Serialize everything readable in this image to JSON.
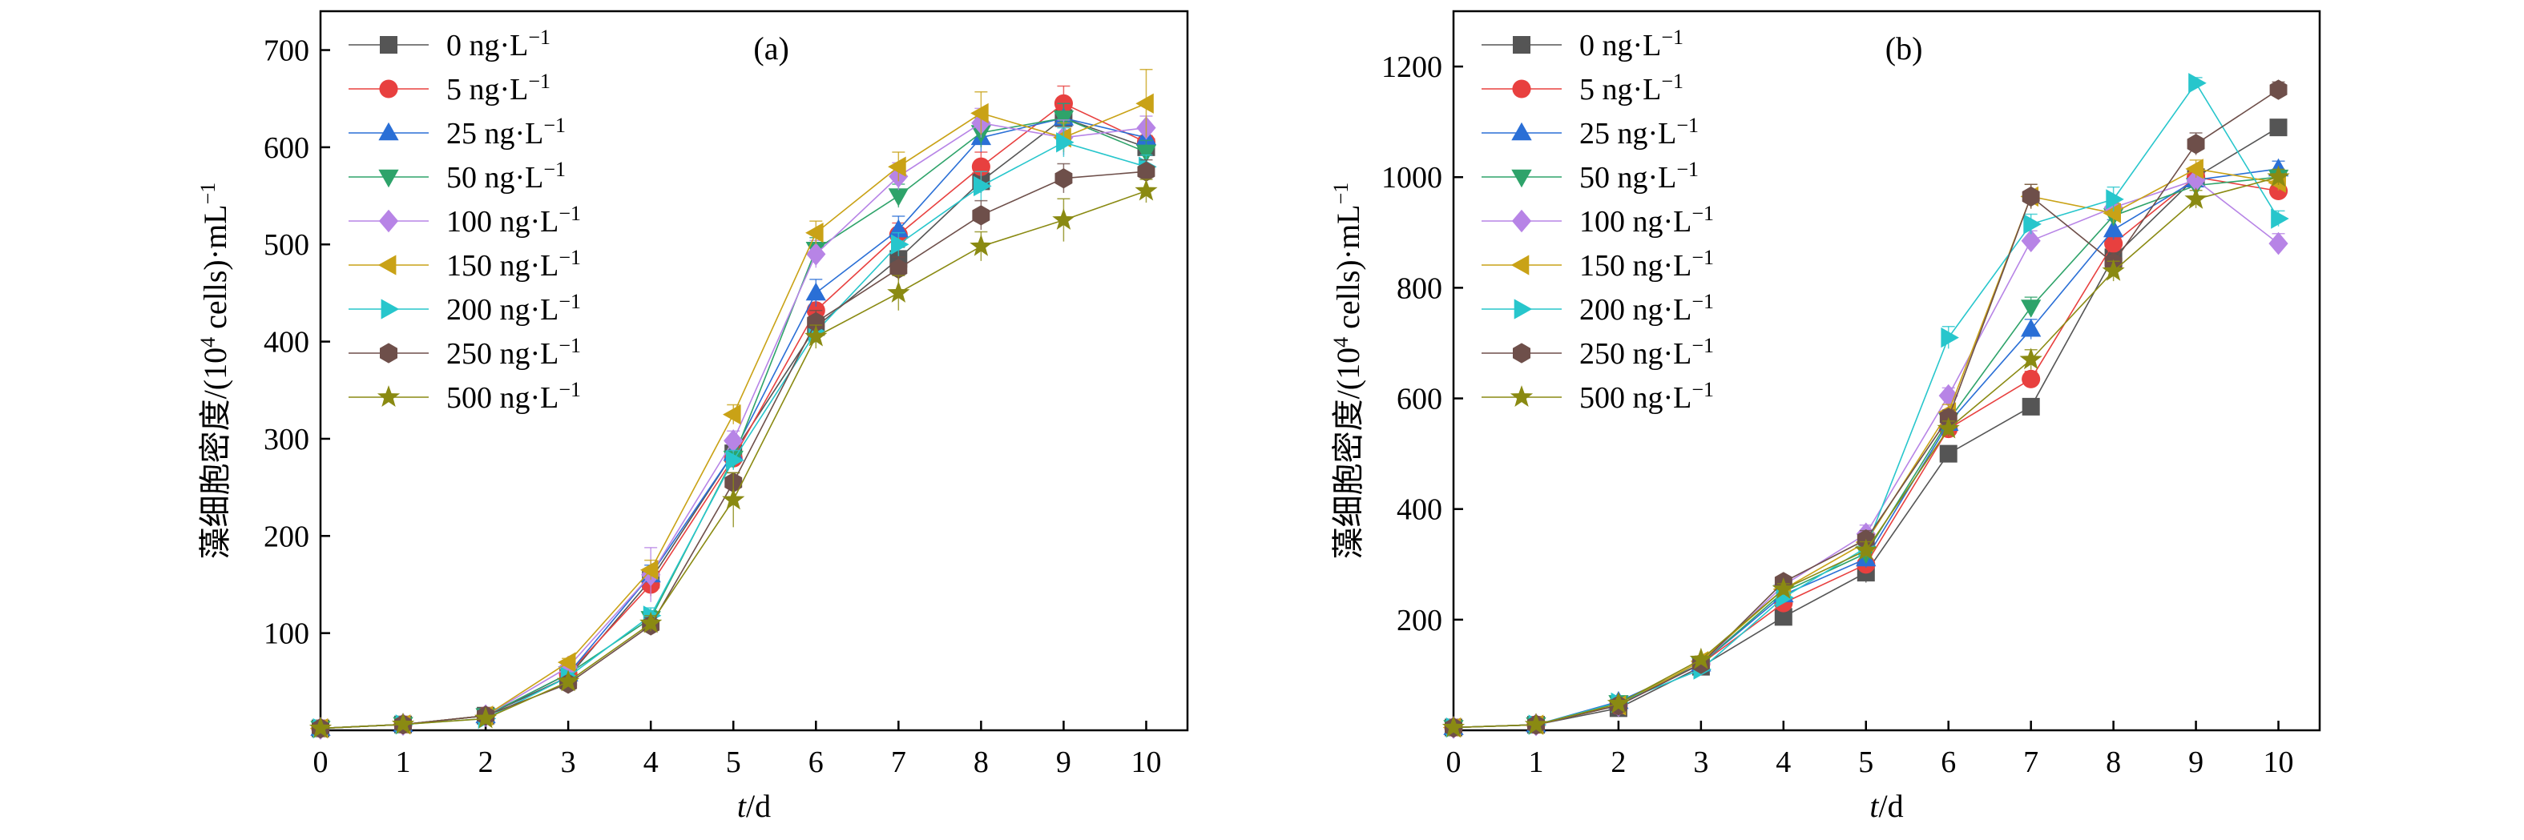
{
  "chart_data": [
    {
      "type": "line",
      "panel_label": "(a)",
      "title": "",
      "xlabel_italic": "t",
      "xlabel_rest": "/d",
      "ylabel_main": "藻细胞密度/(10",
      "ylabel_sup": "4",
      "ylabel_tail": " cells)·mL",
      "ylabel_sup2": "−1",
      "xlim": [
        0,
        10.5
      ],
      "ylim": [
        0,
        740
      ],
      "xticks": [
        0,
        1,
        2,
        3,
        4,
        5,
        6,
        7,
        8,
        9,
        10
      ],
      "yticks": [
        100,
        200,
        300,
        400,
        500,
        600,
        700
      ],
      "grid": false,
      "legend_position": "top-left",
      "x": [
        0,
        1,
        2,
        3,
        4,
        5,
        6,
        7,
        8,
        9,
        10
      ],
      "series": [
        {
          "name": "0 ng·L",
          "sup": "−1",
          "color": "#555555",
          "marker": "square",
          "values": [
            2,
            6,
            15,
            55,
            155,
            285,
            415,
            485,
            565,
            630,
            600
          ],
          "err": [
            2,
            1,
            2,
            4,
            10,
            10,
            12,
            12,
            12,
            12,
            12
          ]
        },
        {
          "name": "5 ng·L",
          "sup": "−1",
          "color": "#e8403f",
          "marker": "circle",
          "values": [
            2,
            6,
            15,
            58,
            150,
            280,
            432,
            510,
            580,
            645,
            605
          ],
          "err": [
            2,
            1,
            2,
            4,
            12,
            10,
            12,
            12,
            15,
            18,
            12
          ]
        },
        {
          "name": "25 ng·L",
          "sup": "−1",
          "color": "#2a6fd6",
          "marker": "triangle-up",
          "values": [
            2,
            6,
            15,
            58,
            160,
            285,
            450,
            515,
            610,
            630,
            610
          ],
          "err": [
            2,
            1,
            2,
            4,
            10,
            10,
            14,
            14,
            15,
            15,
            12
          ]
        },
        {
          "name": "50 ng·L",
          "sup": "−1",
          "color": "#2ea36a",
          "marker": "triangle-down",
          "values": [
            2,
            6,
            15,
            58,
            115,
            280,
            495,
            550,
            615,
            630,
            595
          ],
          "err": [
            2,
            1,
            2,
            4,
            8,
            10,
            12,
            12,
            15,
            15,
            12
          ]
        },
        {
          "name": "100 ng·L",
          "sup": "−1",
          "color": "#b784e6",
          "marker": "diamond",
          "values": [
            2,
            6,
            15,
            65,
            160,
            298,
            490,
            570,
            625,
            610,
            620
          ],
          "err": [
            2,
            1,
            2,
            4,
            28,
            10,
            14,
            14,
            15,
            18,
            12
          ]
        },
        {
          "name": "150 ng·L",
          "sup": "−1",
          "color": "#c9a216",
          "marker": "triangle-left",
          "values": [
            2,
            6,
            15,
            70,
            165,
            325,
            512,
            580,
            635,
            610,
            645
          ],
          "err": [
            2,
            1,
            2,
            4,
            10,
            10,
            12,
            15,
            22,
            15,
            35
          ]
        },
        {
          "name": "200 ng·L",
          "sup": "−1",
          "color": "#27c6cc",
          "marker": "triangle-right",
          "values": [
            2,
            6,
            12,
            55,
            118,
            278,
            410,
            500,
            560,
            605,
            580
          ],
          "err": [
            2,
            1,
            2,
            4,
            8,
            10,
            12,
            12,
            15,
            15,
            12
          ]
        },
        {
          "name": "250 ng·L",
          "sup": "−1",
          "color": "#6e4f4a",
          "marker": "hexagon",
          "values": [
            2,
            6,
            15,
            48,
            108,
            255,
            420,
            475,
            530,
            568,
            575
          ],
          "err": [
            2,
            1,
            2,
            4,
            8,
            10,
            12,
            12,
            15,
            15,
            12
          ]
        },
        {
          "name": "500 ng·L",
          "sup": "−1",
          "color": "#8a8a12",
          "marker": "star",
          "values": [
            2,
            6,
            12,
            50,
            110,
            237,
            405,
            450,
            498,
            525,
            555
          ],
          "err": [
            2,
            1,
            2,
            4,
            8,
            28,
            12,
            18,
            15,
            22,
            12
          ]
        }
      ]
    },
    {
      "type": "line",
      "panel_label": "(b)",
      "title": "",
      "xlabel_italic": "t",
      "xlabel_rest": "/d",
      "ylabel_main": "藻细胞密度/(10",
      "ylabel_sup": "4",
      "ylabel_tail": " cells)·mL",
      "ylabel_sup2": "−1",
      "xlim": [
        0,
        10.5
      ],
      "ylim": [
        0,
        1300
      ],
      "xticks": [
        0,
        1,
        2,
        3,
        4,
        5,
        6,
        7,
        8,
        9,
        10
      ],
      "yticks": [
        200,
        400,
        600,
        800,
        1000,
        1200
      ],
      "grid": false,
      "legend_position": "top-left",
      "x": [
        0,
        1,
        2,
        3,
        4,
        5,
        6,
        7,
        8,
        9,
        10
      ],
      "series": [
        {
          "name": "0 ng·L",
          "sup": "−1",
          "color": "#555555",
          "marker": "square",
          "values": [
            5,
            10,
            40,
            115,
            205,
            285,
            500,
            585,
            855,
            1000,
            1090
          ],
          "err": [
            3,
            2,
            4,
            6,
            10,
            18,
            14,
            14,
            18,
            16,
            14
          ]
        },
        {
          "name": "5 ng·L",
          "sup": "−1",
          "color": "#e8403f",
          "marker": "circle",
          "values": [
            5,
            10,
            45,
            120,
            230,
            300,
            545,
            635,
            880,
            1000,
            975
          ],
          "err": [
            3,
            2,
            4,
            6,
            10,
            16,
            14,
            14,
            18,
            16,
            14
          ]
        },
        {
          "name": "25 ng·L",
          "sup": "−1",
          "color": "#2a6fd6",
          "marker": "triangle-up",
          "values": [
            5,
            10,
            52,
            120,
            245,
            310,
            555,
            725,
            905,
            995,
            1015
          ],
          "err": [
            3,
            2,
            4,
            6,
            10,
            16,
            14,
            18,
            18,
            16,
            14
          ]
        },
        {
          "name": "50 ng·L",
          "sup": "−1",
          "color": "#2ea36a",
          "marker": "triangle-down",
          "values": [
            5,
            10,
            50,
            120,
            250,
            320,
            560,
            765,
            930,
            985,
            1000
          ],
          "err": [
            3,
            2,
            4,
            6,
            10,
            16,
            14,
            18,
            18,
            16,
            14
          ]
        },
        {
          "name": "100 ng·L",
          "sup": "−1",
          "color": "#b784e6",
          "marker": "diamond",
          "values": [
            5,
            10,
            45,
            120,
            262,
            355,
            605,
            885,
            945,
            995,
            880
          ],
          "err": [
            3,
            2,
            4,
            6,
            10,
            16,
            14,
            18,
            18,
            16,
            18
          ]
        },
        {
          "name": "150 ng·L",
          "sup": "−1",
          "color": "#c9a216",
          "marker": "triangle-left",
          "values": [
            5,
            10,
            45,
            125,
            255,
            340,
            575,
            965,
            935,
            1015,
            990
          ],
          "err": [
            3,
            2,
            4,
            6,
            10,
            16,
            14,
            22,
            18,
            16,
            14
          ]
        },
        {
          "name": "200 ng·L",
          "sup": "−1",
          "color": "#27c6cc",
          "marker": "triangle-right",
          "values": [
            5,
            10,
            50,
            110,
            240,
            330,
            710,
            915,
            960,
            1170,
            925
          ],
          "err": [
            3,
            2,
            4,
            6,
            10,
            16,
            20,
            18,
            22,
            10,
            14
          ]
        },
        {
          "name": "250 ng·L",
          "sup": "−1",
          "color": "#6e4f4a",
          "marker": "hexagon",
          "values": [
            5,
            10,
            45,
            120,
            268,
            345,
            565,
            965,
            845,
            1060,
            1158
          ],
          "err": [
            3,
            2,
            4,
            6,
            10,
            16,
            14,
            22,
            18,
            20,
            14
          ]
        },
        {
          "name": "500 ng·L",
          "sup": "−1",
          "color": "#8a8a12",
          "marker": "star",
          "values": [
            5,
            10,
            48,
            128,
            255,
            325,
            545,
            670,
            830,
            960,
            1000
          ],
          "err": [
            3,
            2,
            4,
            6,
            10,
            16,
            14,
            18,
            18,
            16,
            14
          ]
        }
      ]
    }
  ]
}
